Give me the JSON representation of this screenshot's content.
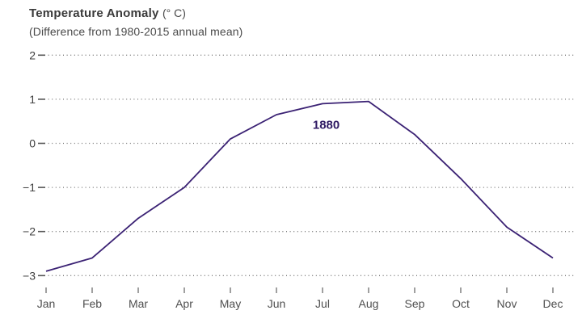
{
  "header": {
    "title": "Temperature Anomaly",
    "unit": "(° C)",
    "subtitle": "(Difference from 1980-2015 annual mean)"
  },
  "colors": {
    "line": "#3b2274",
    "annotation": "#2f1a63",
    "grid_dots": "#757575",
    "axis_text": "#4a4a4a",
    "title_text": "#3a3a3a"
  },
  "chart_data": {
    "type": "line",
    "title": "Temperature Anomaly (° C)",
    "subtitle": "(Difference from 1980-2015 annual mean)",
    "categories": [
      "Jan",
      "Feb",
      "Mar",
      "Apr",
      "May",
      "Jun",
      "Jul",
      "Aug",
      "Sep",
      "Oct",
      "Nov",
      "Dec"
    ],
    "series": [
      {
        "name": "1880",
        "values": [
          -2.9,
          -2.6,
          -1.7,
          -1.0,
          0.1,
          0.65,
          0.9,
          0.95,
          0.2,
          -0.8,
          -1.9,
          -2.6
        ]
      }
    ],
    "ylim": [
      -3,
      2
    ],
    "ytick_step": 1,
    "xlabel": "",
    "ylabel": "Temperature Anomaly (° C)",
    "grid": "horizontal dotted lines at every integer",
    "legend_position": "inline annotation near curve peak",
    "annotation": {
      "text": "1880"
    }
  }
}
